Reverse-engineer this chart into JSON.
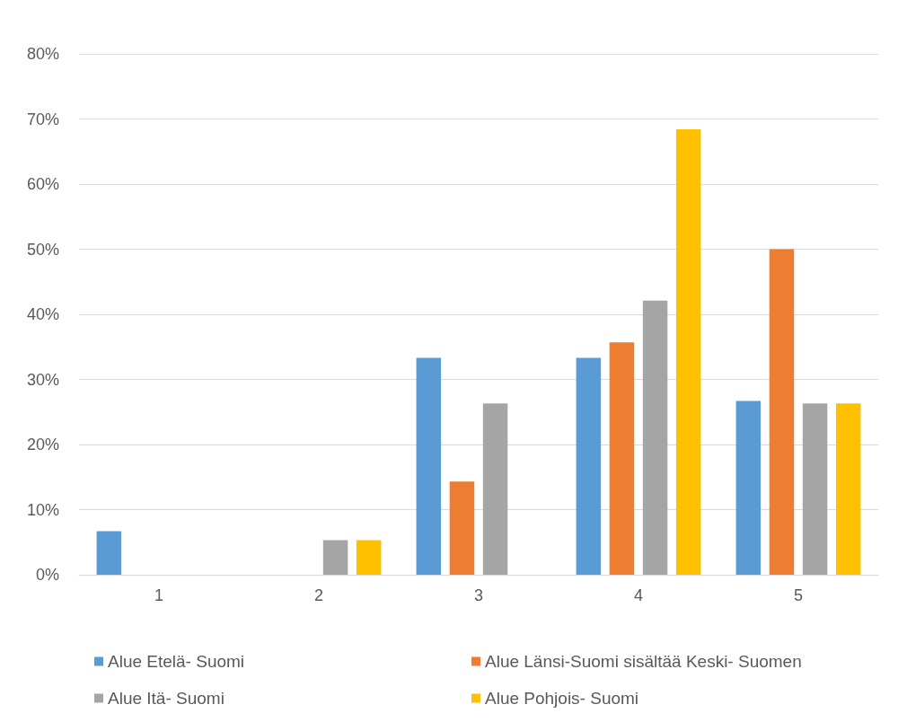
{
  "chart_data": {
    "type": "bar",
    "categories": [
      "1",
      "2",
      "3",
      "4",
      "5"
    ],
    "series": [
      {
        "name": "Alue Etelä- Suomi",
        "color": "#5b9bd5",
        "values": [
          6.7,
          0,
          33.3,
          33.3,
          26.7
        ]
      },
      {
        "name": "Alue Länsi-Suomi sisältää Keski- Suomen",
        "color": "#ed7d31",
        "values": [
          0,
          0,
          14.3,
          35.7,
          50.0
        ]
      },
      {
        "name": "Alue Itä- Suomi",
        "color": "#a5a5a5",
        "values": [
          0,
          5.3,
          26.3,
          42.1,
          26.3
        ]
      },
      {
        "name": "Alue Pohjois- Suomi",
        "color": "#ffc000",
        "values": [
          0,
          5.3,
          0,
          68.4,
          26.3
        ]
      }
    ],
    "ylim": [
      0,
      80
    ],
    "yticks": [
      {
        "value": 0,
        "label": "0%"
      },
      {
        "value": 10,
        "label": "10%"
      },
      {
        "value": 20,
        "label": "20%"
      },
      {
        "value": 30,
        "label": "30%"
      },
      {
        "value": 40,
        "label": "40%"
      },
      {
        "value": 50,
        "label": "50%"
      },
      {
        "value": 60,
        "label": "60%"
      },
      {
        "value": 70,
        "label": "70%"
      },
      {
        "value": 80,
        "label": "80%"
      }
    ],
    "grid": "y",
    "legend": "bottom"
  }
}
